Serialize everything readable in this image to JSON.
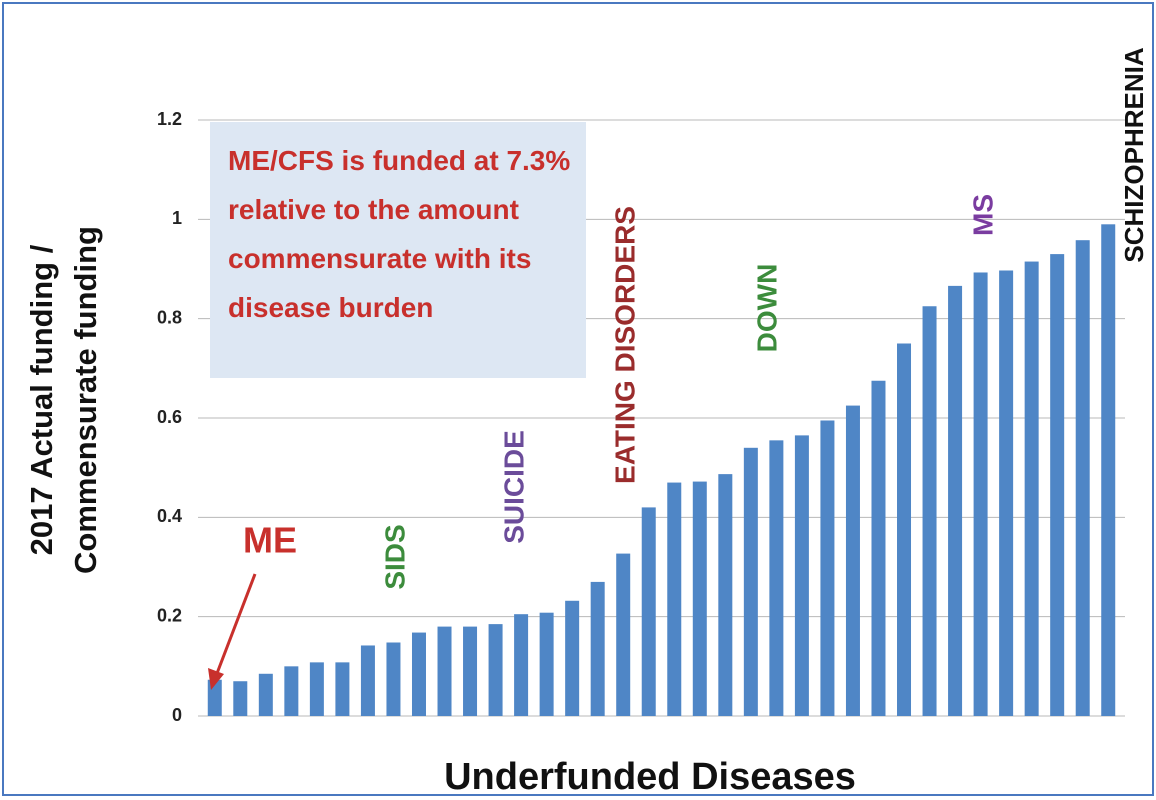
{
  "chart_data": {
    "type": "bar",
    "y_label": [
      "2017 Actual funding /",
      "Commensurate funding"
    ],
    "x_label": "Underfunded Diseases",
    "callout": "ME/CFS is funded at 7.3% relative to the amount commensurate with its disease burden",
    "annotations": [
      {
        "text": "ME",
        "color": "#c8302c"
      },
      {
        "text": "SIDS",
        "color": "#3c8c3c"
      },
      {
        "text": "SUICIDE",
        "color": "#6b4c9a"
      },
      {
        "text": "EATING DISORDERS",
        "color": "#9a2c2c"
      },
      {
        "text": "DOWN",
        "color": "#3c8c3c"
      },
      {
        "text": "MS",
        "color": "#7a3ca0"
      },
      {
        "text": "SCHIZOPHRENIA",
        "color": "#111111"
      }
    ],
    "categories": [
      null,
      null,
      null,
      null,
      null,
      null,
      null,
      null,
      null,
      null,
      null,
      null,
      null,
      null,
      null,
      null,
      null,
      null,
      null,
      null,
      null,
      null,
      null,
      null,
      null,
      null,
      null,
      null,
      null,
      null,
      null,
      null,
      null,
      null,
      null,
      null
    ],
    "values": [
      0.073,
      0.07,
      0.085,
      0.1,
      0.108,
      0.108,
      0.142,
      0.148,
      0.168,
      0.18,
      0.18,
      0.185,
      0.205,
      0.208,
      0.232,
      0.27,
      0.327,
      0.42,
      0.47,
      0.472,
      0.487,
      0.54,
      0.555,
      0.565,
      0.595,
      0.625,
      0.675,
      0.75,
      0.825,
      0.866,
      0.893,
      0.897,
      0.915,
      0.93,
      0.958,
      0.99
    ],
    "color": "#4f86c6",
    "ylim": [
      0,
      1.2
    ],
    "yticks": [
      0,
      0.2,
      0.4,
      0.6,
      0.8,
      1,
      1.2
    ],
    "grid": true
  }
}
